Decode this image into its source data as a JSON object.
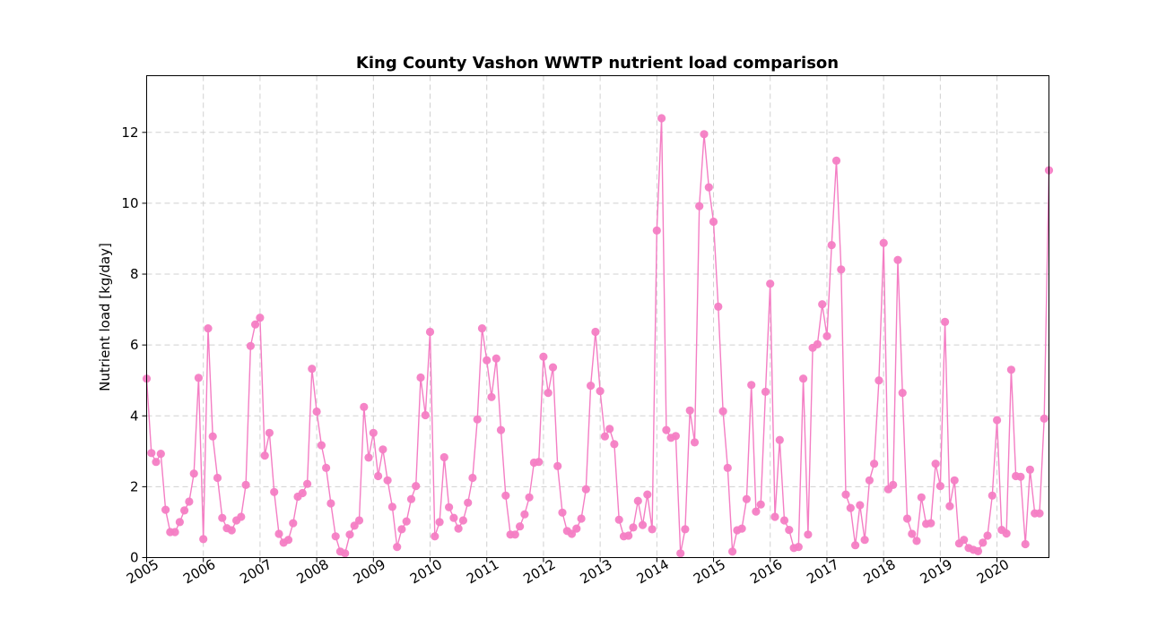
{
  "chart_data": {
    "type": "line",
    "title": "King County Vashon WWTP nutrient load comparison",
    "xlabel": "",
    "ylabel": "Nutrient load [kg/day]",
    "x_start": "2005-01",
    "x_step": "month",
    "xlim": [
      "2005-01",
      "2020-12"
    ],
    "ylim": [
      0,
      13.6
    ],
    "yticks": [
      0,
      2,
      4,
      6,
      8,
      10,
      12
    ],
    "xticks": [
      "2005",
      "2006",
      "2007",
      "2008",
      "2009",
      "2010",
      "2011",
      "2012",
      "2013",
      "2014",
      "2015",
      "2016",
      "2017",
      "2018",
      "2019",
      "2020"
    ],
    "grid": true,
    "color": "#f47ec4",
    "series": [
      {
        "values": [
          5.05,
          2.95,
          2.7,
          2.93,
          1.35,
          0.72,
          0.72,
          1.0,
          1.33,
          1.58,
          2.37,
          5.07,
          0.52,
          6.47,
          3.42,
          2.25,
          1.12,
          0.83,
          0.77,
          1.05,
          1.15,
          2.05,
          5.97,
          6.58,
          6.77,
          2.88,
          3.52,
          1.85,
          0.67,
          0.42,
          0.5,
          0.97,
          1.72,
          1.82,
          2.08,
          5.33,
          4.12,
          3.17,
          2.53,
          1.53,
          0.6,
          0.17,
          0.12,
          0.65,
          0.9,
          1.05,
          4.25,
          2.82,
          3.52,
          2.3,
          3.05,
          2.18,
          1.43,
          0.3,
          0.8,
          1.02,
          1.65,
          2.02,
          5.08,
          4.02,
          6.37,
          0.6,
          1.0,
          2.83,
          1.42,
          1.12,
          0.82,
          1.05,
          1.55,
          2.25,
          3.9,
          6.47,
          5.57,
          4.53,
          5.62,
          3.6,
          1.75,
          0.65,
          0.65,
          0.88,
          1.22,
          1.7,
          2.68,
          2.7,
          5.67,
          4.65,
          5.37,
          2.58,
          1.27,
          0.75,
          0.67,
          0.82,
          1.1,
          1.93,
          4.85,
          6.37,
          4.7,
          3.42,
          3.63,
          3.2,
          1.07,
          0.6,
          0.62,
          0.85,
          1.6,
          0.92,
          1.78,
          0.8,
          9.23,
          12.4,
          3.6,
          3.38,
          3.43,
          0.12,
          0.8,
          4.15,
          3.25,
          9.92,
          11.95,
          10.45,
          9.48,
          7.08,
          4.13,
          2.53,
          0.17,
          0.77,
          0.82,
          1.65,
          4.87,
          1.3,
          1.5,
          4.68,
          7.73,
          1.15,
          3.32,
          1.05,
          0.78,
          0.27,
          0.3,
          5.05,
          0.65,
          5.92,
          6.02,
          7.15,
          6.25,
          8.82,
          11.2,
          8.13,
          1.78,
          1.4,
          0.35,
          1.48,
          0.5,
          2.18,
          2.65,
          5.0,
          8.88,
          1.93,
          2.05,
          8.4,
          4.65,
          1.1,
          0.67,
          0.47,
          1.7,
          0.95,
          0.97,
          2.65,
          2.02,
          6.65,
          1.45,
          2.18,
          0.4,
          0.5,
          0.27,
          0.22,
          0.18,
          0.42,
          0.62,
          1.75,
          3.88,
          0.78,
          0.68,
          5.3,
          2.3,
          2.28,
          0.38,
          2.48,
          1.25,
          1.25,
          3.92,
          10.93
        ]
      }
    ]
  }
}
